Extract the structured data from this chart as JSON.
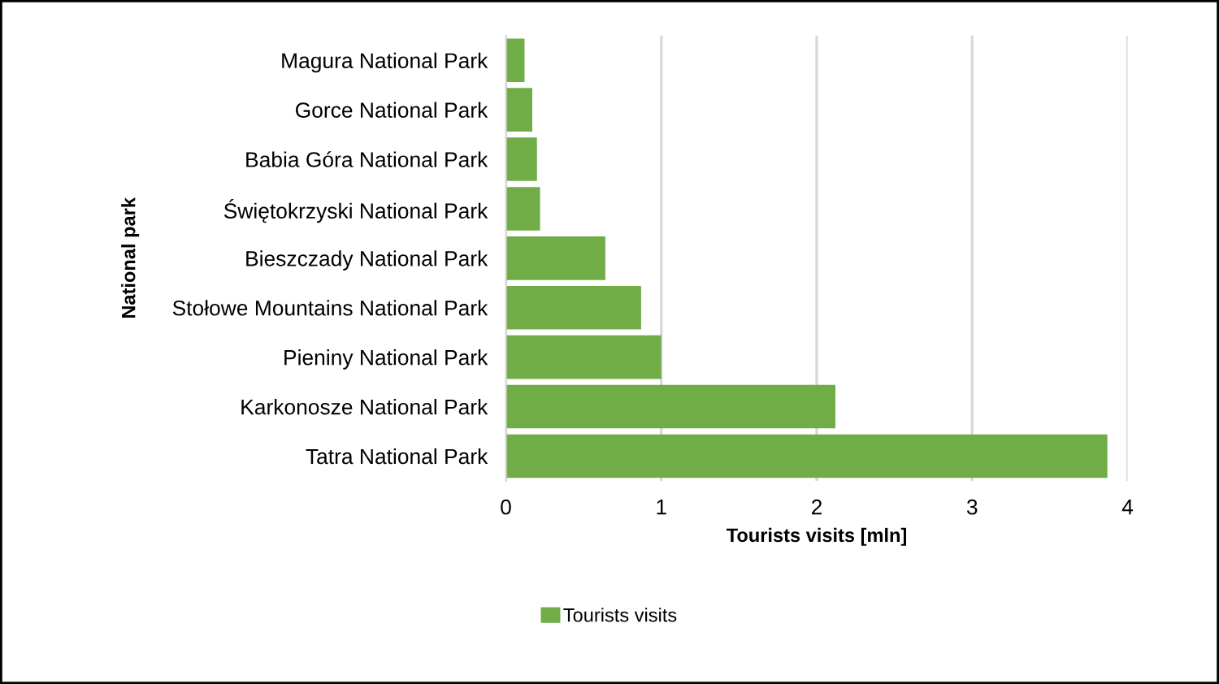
{
  "chart_data": {
    "type": "bar",
    "orientation": "horizontal",
    "xlabel": "Tourists visits [mln]",
    "ylabel": "National park",
    "categories": [
      "Magura National Park",
      "Gorce National Park",
      "Babia Góra National Park",
      "Świętokrzyski National Park",
      "Bieszczady National Park",
      "Stołowe Mountains National Park",
      "Pieniny National Park",
      "Karkonosze National Park",
      "Tatra National Park"
    ],
    "series": [
      {
        "name": "Tourists visits",
        "color": "#70ad47",
        "values": [
          0.12,
          0.17,
          0.2,
          0.22,
          0.64,
          0.87,
          1.0,
          2.12,
          3.87
        ]
      }
    ],
    "xlim": [
      0,
      4
    ],
    "xticks": [
      0,
      1,
      2,
      3,
      4
    ],
    "grid": "x",
    "legend": "bottom"
  }
}
